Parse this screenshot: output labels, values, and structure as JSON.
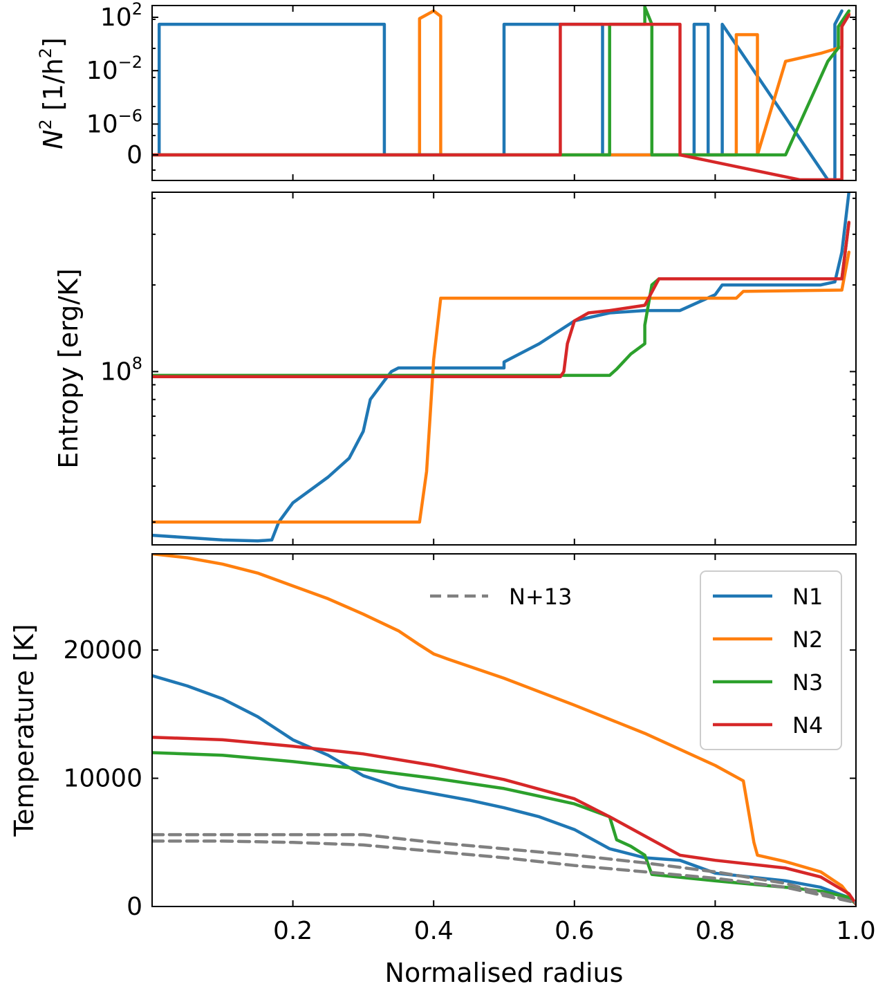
{
  "chart_data": [
    {
      "type": "line",
      "panel": "top",
      "ylabel_main": "N",
      "ylabel_sup": "2",
      "ylabel_rest": " [1/h",
      "ylabel_sup2": "2",
      "ylabel_end": "]",
      "yscale": "symlog",
      "xlim": [
        0.0,
        1.0
      ],
      "yticks": [
        {
          "base": "10",
          "exp": "2",
          "value": 100
        },
        {
          "base": "10",
          "exp": "−2",
          "value": 0.01
        },
        {
          "base": "10",
          "exp": "−6",
          "value": 1e-06
        },
        {
          "base": "0",
          "exp": "",
          "value": 0
        }
      ],
      "series": [
        {
          "name": "N1",
          "color": "#1f77b4",
          "x": [
            0.0,
            0.01,
            0.01,
            0.33,
            0.33,
            0.49,
            0.5,
            0.5,
            0.64,
            0.64,
            0.77,
            0.77,
            0.79,
            0.79,
            0.81,
            0.81,
            0.96,
            0.97,
            0.97,
            0.98
          ],
          "y": [
            0,
            0,
            30,
            30,
            0,
            0,
            0,
            30,
            30,
            0,
            0,
            30,
            30,
            0,
            0,
            30,
            -0.5,
            -1.2,
            30,
            300
          ]
        },
        {
          "name": "N2",
          "color": "#ff7f0e",
          "x": [
            0.0,
            0.38,
            0.38,
            0.4,
            0.41,
            0.41,
            0.83,
            0.83,
            0.86,
            0.86,
            0.9,
            0.95,
            0.98,
            0.98,
            0.99
          ],
          "y": [
            0,
            0,
            80,
            300,
            120,
            0,
            0,
            5,
            5,
            0,
            0.05,
            0.2,
            0.6,
            30,
            200
          ]
        },
        {
          "name": "N3",
          "color": "#2ca02c",
          "x": [
            0.0,
            0.65,
            0.65,
            0.7,
            0.7,
            0.71,
            0.71,
            0.9,
            0.96,
            0.975,
            0.975,
            0.99
          ],
          "y": [
            0,
            0,
            30,
            30,
            600,
            30,
            0,
            0,
            0.05,
            0.5,
            20,
            300
          ]
        },
        {
          "name": "N4",
          "color": "#d62728",
          "x": [
            0.0,
            0.58,
            0.58,
            0.75,
            0.75,
            0.92,
            0.97,
            0.98,
            0.98,
            0.99
          ],
          "y": [
            0,
            0,
            30,
            30,
            0,
            -0.1,
            -0.8,
            -2.2,
            20,
            150
          ]
        }
      ]
    },
    {
      "type": "line",
      "panel": "middle",
      "ylabel": "Entropy [erg/K]",
      "yscale": "log",
      "xlim": [
        0.0,
        1.0
      ],
      "ylim": [
        25000000,
        420000000
      ],
      "ytick_major": {
        "base": "10",
        "exp": "8",
        "value": 100000000
      },
      "series": [
        {
          "name": "N1",
          "color": "#1f77b4",
          "x": [
            0.0,
            0.05,
            0.1,
            0.15,
            0.17,
            0.18,
            0.2,
            0.22,
            0.25,
            0.28,
            0.3,
            0.31,
            0.33,
            0.34,
            0.35,
            0.5,
            0.5,
            0.55,
            0.6,
            0.65,
            0.7,
            0.75,
            0.8,
            0.81,
            0.95,
            0.97,
            0.98,
            0.99
          ],
          "y": [
            27000000,
            26500000,
            26000000,
            25800000,
            26000000,
            30000000,
            35000000,
            38000000,
            43000000,
            50000000,
            62000000,
            80000000,
            93000000,
            100000000,
            103000000,
            103000000,
            108000000,
            125000000,
            150000000,
            160000000,
            163000000,
            163000000,
            185000000,
            200000000,
            200000000,
            205000000,
            260000000,
            420000000
          ]
        },
        {
          "name": "N2",
          "color": "#ff7f0e",
          "x": [
            0.0,
            0.38,
            0.39,
            0.395,
            0.4,
            0.41,
            0.5,
            0.83,
            0.84,
            0.98,
            0.99
          ],
          "y": [
            30000000,
            30000000,
            45000000,
            70000000,
            110000000,
            180000000,
            180000000,
            180000000,
            190000000,
            192000000,
            260000000
          ]
        },
        {
          "name": "N3",
          "color": "#2ca02c",
          "x": [
            0.0,
            0.65,
            0.66,
            0.68,
            0.7,
            0.7,
            0.71,
            0.72,
            0.98,
            0.99
          ],
          "y": [
            97000000,
            97000000,
            102000000,
            115000000,
            125000000,
            145000000,
            200000000,
            210000000,
            210000000,
            330000000
          ]
        },
        {
          "name": "N4",
          "color": "#d62728",
          "x": [
            0.0,
            0.58,
            0.585,
            0.59,
            0.6,
            0.62,
            0.65,
            0.7,
            0.72,
            0.98,
            0.99
          ],
          "y": [
            96000000,
            96000000,
            100000000,
            125000000,
            150000000,
            160000000,
            163000000,
            170000000,
            210000000,
            210000000,
            330000000
          ]
        }
      ]
    },
    {
      "type": "line",
      "panel": "bottom",
      "ylabel": "Temperature [K]",
      "xlabel": "Normalised radius",
      "xlim": [
        0.0,
        1.0
      ],
      "ylim": [
        0,
        27500
      ],
      "xticks": [
        "0.2",
        "0.4",
        "0.6",
        "0.8",
        "1.0"
      ],
      "yticks": [
        "0",
        "10000",
        "20000"
      ],
      "legend": [
        {
          "label": "N1",
          "color": "#1f77b4"
        },
        {
          "label": "N2",
          "color": "#ff7f0e"
        },
        {
          "label": "N3",
          "color": "#2ca02c"
        },
        {
          "label": "N4",
          "color": "#d62728"
        }
      ],
      "legend_extra": {
        "label": "N+13",
        "color": "#808080",
        "style": "dashed"
      },
      "series": [
        {
          "name": "N1",
          "color": "#1f77b4",
          "x": [
            0.0,
            0.05,
            0.1,
            0.15,
            0.2,
            0.25,
            0.3,
            0.35,
            0.4,
            0.45,
            0.5,
            0.55,
            0.6,
            0.65,
            0.7,
            0.75,
            0.8,
            0.85,
            0.9,
            0.95,
            0.99,
            1.0
          ],
          "y": [
            18000,
            17200,
            16200,
            14800,
            13000,
            11800,
            10200,
            9300,
            8800,
            8300,
            7700,
            7000,
            6000,
            4500,
            3800,
            3600,
            2600,
            2300,
            2000,
            1500,
            700,
            200
          ]
        },
        {
          "name": "N2",
          "color": "#ff7f0e",
          "x": [
            0.0,
            0.05,
            0.1,
            0.15,
            0.2,
            0.25,
            0.3,
            0.35,
            0.38,
            0.4,
            0.42,
            0.5,
            0.6,
            0.7,
            0.8,
            0.84,
            0.855,
            0.86,
            0.9,
            0.95,
            0.98,
            1.0
          ],
          "y": [
            27500,
            27200,
            26700,
            26000,
            25000,
            24000,
            22800,
            21500,
            20400,
            19700,
            19300,
            17800,
            15700,
            13500,
            11000,
            9800,
            5000,
            4000,
            3500,
            2700,
            1600,
            200
          ]
        },
        {
          "name": "N3",
          "color": "#2ca02c",
          "x": [
            0.0,
            0.1,
            0.2,
            0.3,
            0.4,
            0.5,
            0.6,
            0.65,
            0.66,
            0.68,
            0.7,
            0.71,
            0.8,
            0.9,
            0.95,
            0.99,
            1.0
          ],
          "y": [
            12000,
            11800,
            11300,
            10700,
            10000,
            9200,
            8000,
            7000,
            5200,
            4700,
            4000,
            2500,
            2000,
            1500,
            1200,
            700,
            200
          ]
        },
        {
          "name": "N4",
          "color": "#d62728",
          "x": [
            0.0,
            0.1,
            0.2,
            0.3,
            0.4,
            0.5,
            0.6,
            0.65,
            0.7,
            0.75,
            0.8,
            0.9,
            0.95,
            0.99,
            1.0
          ],
          "y": [
            13200,
            13000,
            12500,
            11900,
            11000,
            9900,
            8400,
            7000,
            5500,
            4000,
            3600,
            3000,
            2300,
            1000,
            200
          ]
        },
        {
          "name": "N+13 a",
          "color": "#808080",
          "dashed": true,
          "x": [
            0.0,
            0.1,
            0.2,
            0.3,
            0.4,
            0.5,
            0.6,
            0.7,
            0.8,
            0.9,
            1.0
          ],
          "y": [
            5600,
            5600,
            5600,
            5600,
            5000,
            4500,
            4000,
            3400,
            2700,
            1800,
            300
          ]
        },
        {
          "name": "N+13 b",
          "color": "#808080",
          "dashed": true,
          "x": [
            0.0,
            0.1,
            0.2,
            0.3,
            0.4,
            0.5,
            0.6,
            0.7,
            0.8,
            0.9,
            1.0
          ],
          "y": [
            5100,
            5100,
            5000,
            4800,
            4300,
            3800,
            3200,
            2700,
            2200,
            1500,
            300
          ]
        }
      ]
    }
  ]
}
